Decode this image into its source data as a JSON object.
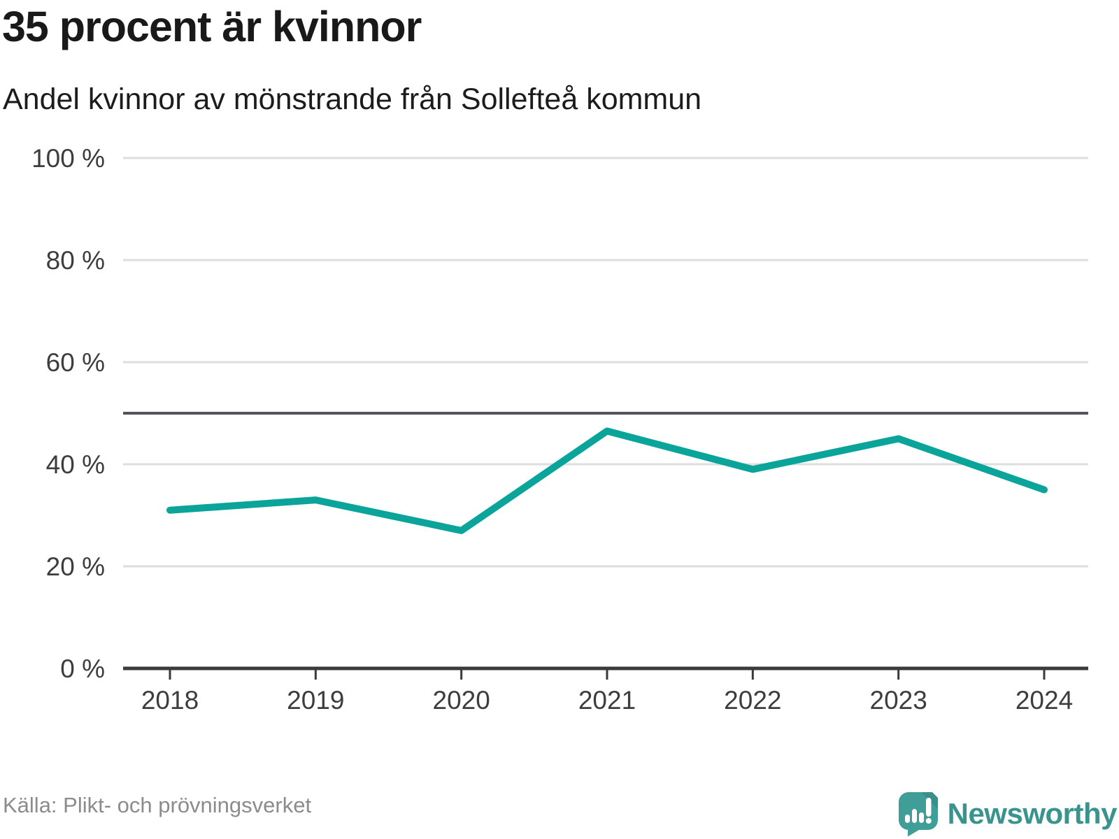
{
  "header": {
    "title": "35 procent är kvinnor",
    "subtitle": "Andel kvinnor av mönstrande från Sollefteå kommun"
  },
  "chart_data": {
    "type": "line",
    "title": "35 procent är kvinnor",
    "subtitle": "Andel kvinnor av mönstrande från Sollefteå kommun",
    "categories": [
      "2018",
      "2019",
      "2020",
      "2021",
      "2022",
      "2023",
      "2024"
    ],
    "series": [
      {
        "name": "Andel kvinnor av mönstrande",
        "values": [
          31,
          33,
          27,
          46.5,
          39,
          45,
          35
        ]
      }
    ],
    "ylim": [
      0,
      100
    ],
    "yticks": [
      0,
      20,
      40,
      60,
      80,
      100
    ],
    "ytick_label_suffix": " %",
    "reference_line": 50,
    "grid": true,
    "legend": "none"
  },
  "footer": {
    "source": "Källa: Plikt- och prövningsverket",
    "brand": "Newsworthy"
  },
  "colors": {
    "line": "#0aa49b",
    "reference_line": "#53545a",
    "gridline": "#dedede",
    "axis": "#3a3a3a",
    "tick_label": "#3d3d3d",
    "source_text": "#8c8c8c",
    "brand_icon": "#3f9e97",
    "brand_icon_fold": "#37908a",
    "brand_text": "#3a948e"
  }
}
